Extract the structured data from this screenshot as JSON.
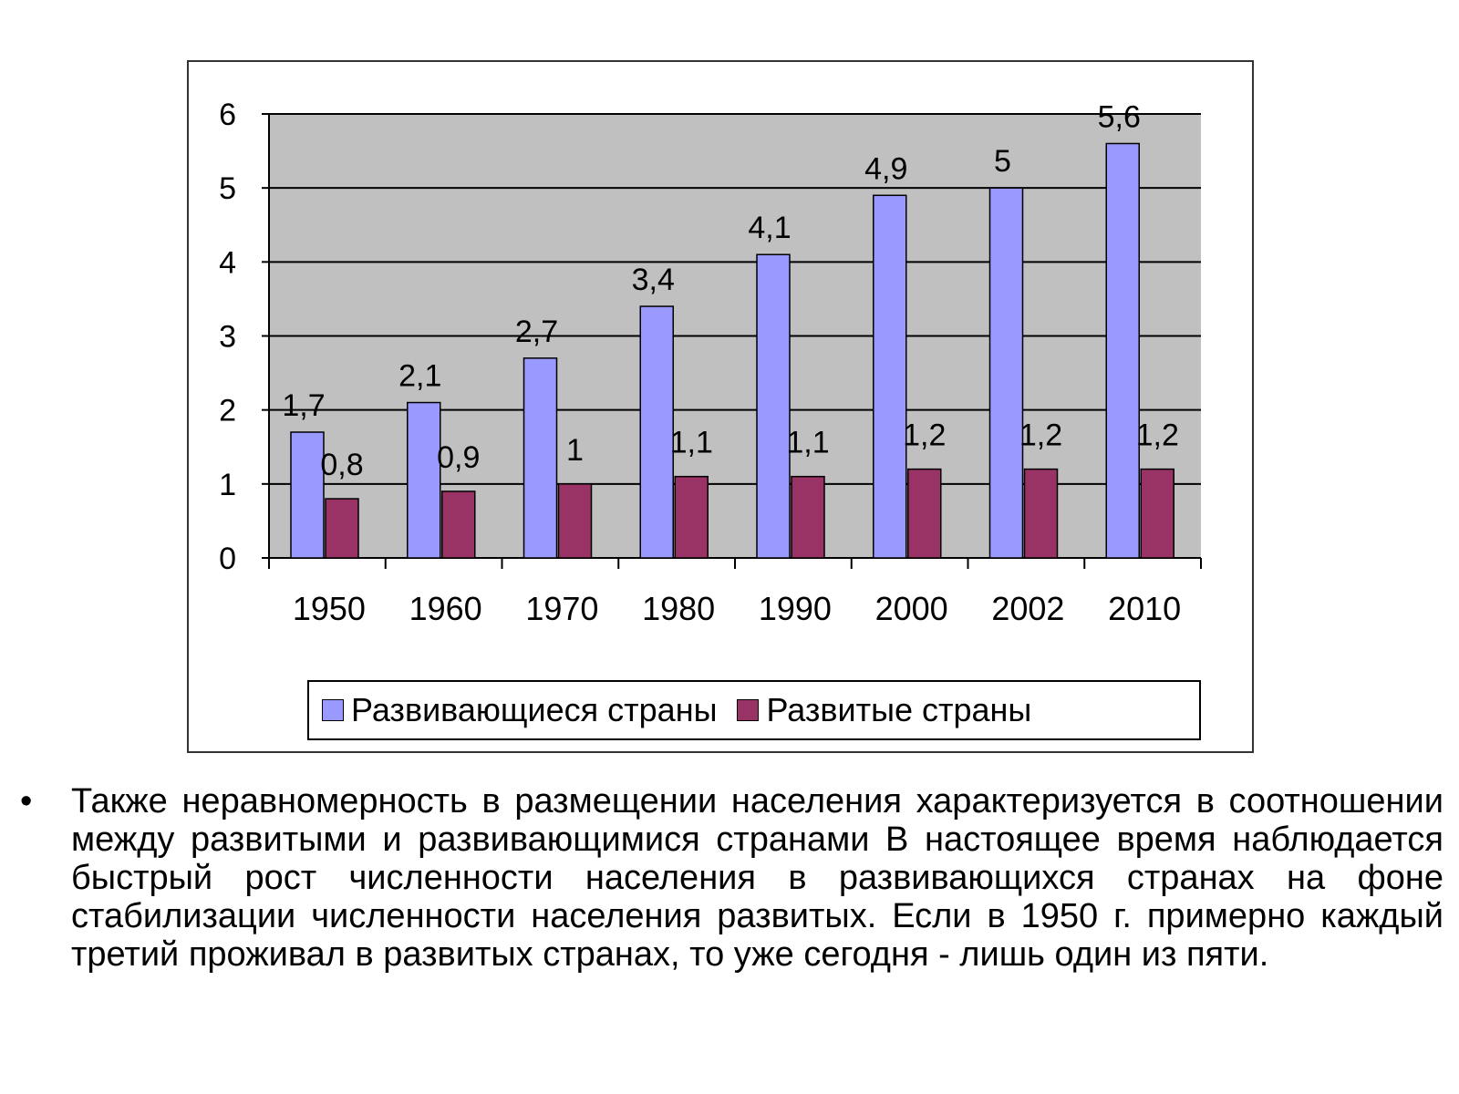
{
  "chart_data": {
    "type": "bar",
    "categories": [
      "1950",
      "1960",
      "1970",
      "1980",
      "1990",
      "2000",
      "2002",
      "2010"
    ],
    "series": [
      {
        "name": "Развивающиеся страны",
        "values": [
          1.7,
          2.1,
          2.7,
          3.4,
          4.1,
          4.9,
          5,
          5.6
        ],
        "labels": [
          "1,7",
          "2,1",
          "2,7",
          "3,4",
          "4,1",
          "4,9",
          "5",
          "5,6"
        ],
        "color": "#9999ff"
      },
      {
        "name": "Развитые страны",
        "values": [
          0.8,
          0.9,
          1,
          1.1,
          1.1,
          1.2,
          1.2,
          1.2
        ],
        "labels": [
          "0,8",
          "0,9",
          "1",
          "1,1",
          "1,1",
          "1,2",
          "1,2",
          "1,2"
        ],
        "color": "#993366"
      }
    ],
    "title": "",
    "xlabel": "",
    "ylabel": "",
    "ylim": [
      0,
      6
    ],
    "yticks": [
      "0",
      "1",
      "2",
      "3",
      "4",
      "5",
      "6"
    ],
    "grid": true,
    "plot_background": "#c0c0c0",
    "legend_position": "bottom"
  },
  "text": {
    "bullet": "•",
    "paragraph": "Также неравномерность в размещении населения характеризуется в соотношении между развитыми и развивающимися странами В настоящее время наблюдается быстрый рост численности населения в развивающихся странах на фоне стабилизации численности населения развитых.  Если в 1950 г. примерно каждый третий проживал в развитых странах, то уже сегодня - лишь один из пяти."
  }
}
